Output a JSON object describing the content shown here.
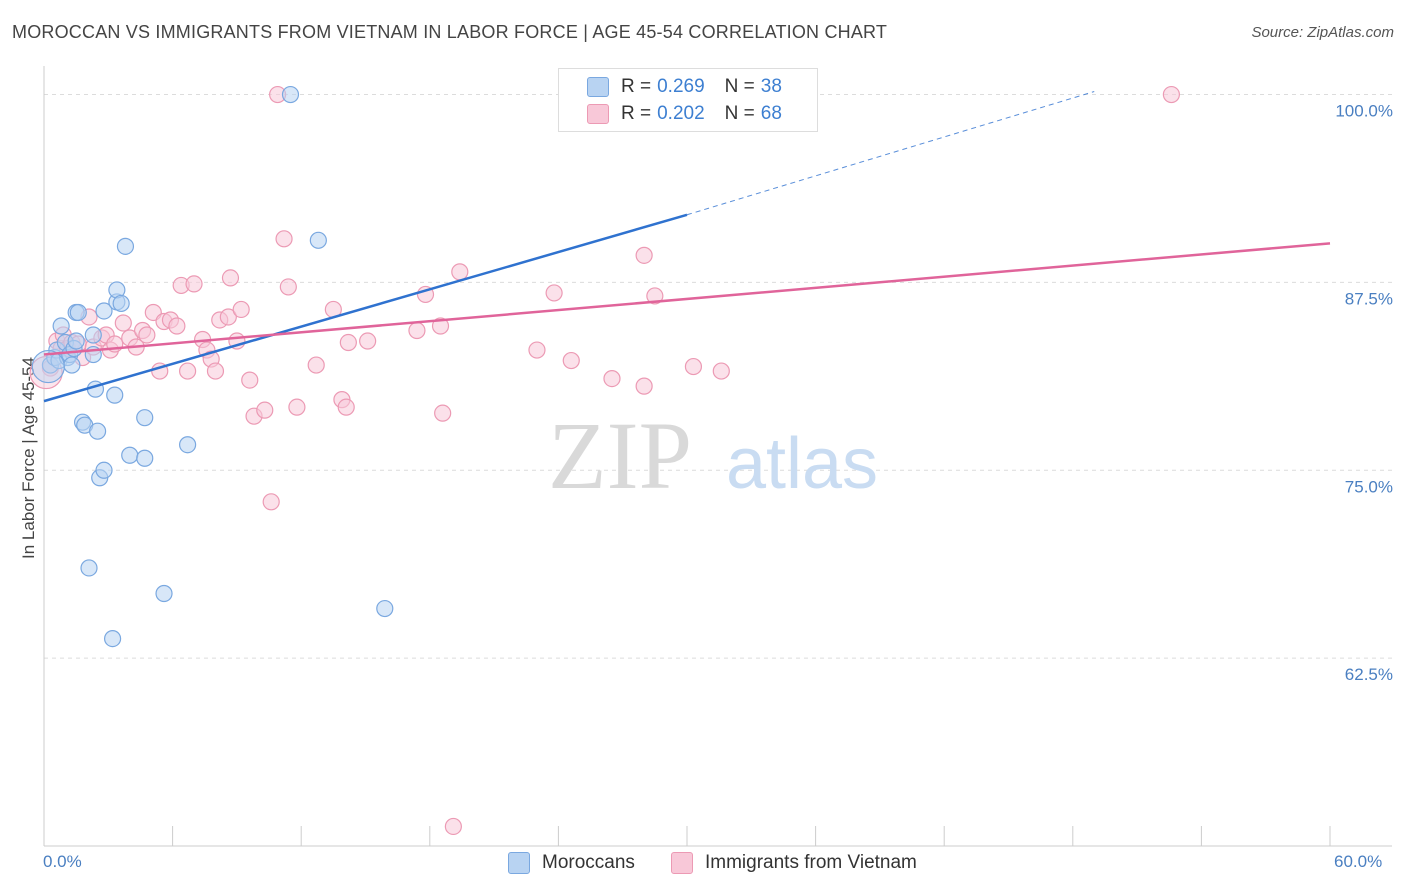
{
  "title": "MOROCCAN VS IMMIGRANTS FROM VIETNAM IN LABOR FORCE | AGE 45-54 CORRELATION CHART",
  "source": "Source: ZipAtlas.com",
  "watermark": {
    "zip": "ZIP",
    "atlas": "atlas"
  },
  "legend": {
    "r_label": "R =",
    "n_label": "N =",
    "rows": [
      {
        "r": "0.269",
        "n": "38",
        "fill": "#b8d3f2",
        "stroke": "#7aa8e0"
      },
      {
        "r": "0.202",
        "n": "68",
        "fill": "#f8c8d8",
        "stroke": "#ec9ab4"
      }
    ]
  },
  "chart_data": {
    "type": "scatter",
    "ylabel": "In Labor Force | Age 45-54",
    "xlabel": "",
    "xlim": [
      0,
      60
    ],
    "ylim": [
      50,
      101.5
    ],
    "x_tick_labels": [
      "0.0%",
      "60.0%"
    ],
    "y_ticks": [
      {
        "value": 100,
        "label": "100.0%"
      },
      {
        "value": 87.5,
        "label": "87.5%"
      },
      {
        "value": 75,
        "label": "75.0%"
      },
      {
        "value": 62.5,
        "label": "62.5%"
      }
    ],
    "grid": "horizontal dashed",
    "series": [
      {
        "name": "Moroccans",
        "color": "#7aa8e0",
        "fill": "#b8d3f2",
        "line_color": "#2f72cf",
        "trend": {
          "x0": 0,
          "y0": 79.6,
          "x1": 30,
          "y1": 92.0,
          "dash_to_x": 49,
          "dash_to_y": 100.2
        },
        "points": [
          [
            0.3,
            82.0
          ],
          [
            0.5,
            82.5
          ],
          [
            0.6,
            83.0
          ],
          [
            0.7,
            82.3
          ],
          [
            0.8,
            84.6
          ],
          [
            1.0,
            83.5
          ],
          [
            1.1,
            82.5
          ],
          [
            1.2,
            82.7
          ],
          [
            1.3,
            82.0
          ],
          [
            1.4,
            83.1
          ],
          [
            1.5,
            83.6
          ],
          [
            1.5,
            85.5
          ],
          [
            1.6,
            85.5
          ],
          [
            1.8,
            78.2
          ],
          [
            1.9,
            78.0
          ],
          [
            2.1,
            68.5
          ],
          [
            2.3,
            84.0
          ],
          [
            2.3,
            82.7
          ],
          [
            2.4,
            80.4
          ],
          [
            2.5,
            77.6
          ],
          [
            2.6,
            74.5
          ],
          [
            2.8,
            75.0
          ],
          [
            2.8,
            85.6
          ],
          [
            3.2,
            63.8
          ],
          [
            3.3,
            80.0
          ],
          [
            3.4,
            86.2
          ],
          [
            3.4,
            87.0
          ],
          [
            3.6,
            86.1
          ],
          [
            3.8,
            89.9
          ],
          [
            4.0,
            76.0
          ],
          [
            4.7,
            78.5
          ],
          [
            4.7,
            75.8
          ],
          [
            5.6,
            66.8
          ],
          [
            6.7,
            76.7
          ],
          [
            11.5,
            100.0
          ],
          [
            12.8,
            90.3
          ],
          [
            15.9,
            65.8
          ],
          [
            0.2,
            81.9
          ]
        ]
      },
      {
        "name": "Immigrants from Vietnam",
        "color": "#ec9ab4",
        "fill": "#f8c8d8",
        "line_color": "#e0649a",
        "trend": {
          "x0": 0,
          "y0": 82.7,
          "x1": 60,
          "y1": 90.1
        },
        "points": [
          [
            0.3,
            81.8
          ],
          [
            0.6,
            83.6
          ],
          [
            0.8,
            83.1
          ],
          [
            0.9,
            84.0
          ],
          [
            1.1,
            83.1
          ],
          [
            1.3,
            83.5
          ],
          [
            1.6,
            83.4
          ],
          [
            1.8,
            82.5
          ],
          [
            2.1,
            85.2
          ],
          [
            2.3,
            83.2
          ],
          [
            2.7,
            83.8
          ],
          [
            2.9,
            84.0
          ],
          [
            3.1,
            83.0
          ],
          [
            3.3,
            83.4
          ],
          [
            3.7,
            84.8
          ],
          [
            4.0,
            83.8
          ],
          [
            4.3,
            83.2
          ],
          [
            4.6,
            84.3
          ],
          [
            4.8,
            84.0
          ],
          [
            5.1,
            85.5
          ],
          [
            5.4,
            81.6
          ],
          [
            5.6,
            84.9
          ],
          [
            5.9,
            85.0
          ],
          [
            6.2,
            84.6
          ],
          [
            6.4,
            87.3
          ],
          [
            6.7,
            81.6
          ],
          [
            7.0,
            87.4
          ],
          [
            7.4,
            83.7
          ],
          [
            7.6,
            83.0
          ],
          [
            7.8,
            82.4
          ],
          [
            8.0,
            81.6
          ],
          [
            8.2,
            85.0
          ],
          [
            8.6,
            85.2
          ],
          [
            8.7,
            87.8
          ],
          [
            9.0,
            83.6
          ],
          [
            9.2,
            85.7
          ],
          [
            9.6,
            81.0
          ],
          [
            9.8,
            78.6
          ],
          [
            10.3,
            79.0
          ],
          [
            10.6,
            72.9
          ],
          [
            10.9,
            100.0
          ],
          [
            11.2,
            90.4
          ],
          [
            11.4,
            87.2
          ],
          [
            11.8,
            79.2
          ],
          [
            12.7,
            82.0
          ],
          [
            13.5,
            85.7
          ],
          [
            13.9,
            79.7
          ],
          [
            14.1,
            79.2
          ],
          [
            14.2,
            83.5
          ],
          [
            15.1,
            83.6
          ],
          [
            17.4,
            84.3
          ],
          [
            17.8,
            86.7
          ],
          [
            18.5,
            84.6
          ],
          [
            18.6,
            78.8
          ],
          [
            19.1,
            51.3
          ],
          [
            19.4,
            88.2
          ],
          [
            23.0,
            83.0
          ],
          [
            23.8,
            86.8
          ],
          [
            24.6,
            82.3
          ],
          [
            25.1,
            100.0
          ],
          [
            26.5,
            81.1
          ],
          [
            28.0,
            89.3
          ],
          [
            28.0,
            80.6
          ],
          [
            28.5,
            86.6
          ],
          [
            30.3,
            81.9
          ],
          [
            31.6,
            81.6
          ],
          [
            52.6,
            100.0
          ],
          [
            0.1,
            81.5
          ]
        ]
      }
    ]
  }
}
